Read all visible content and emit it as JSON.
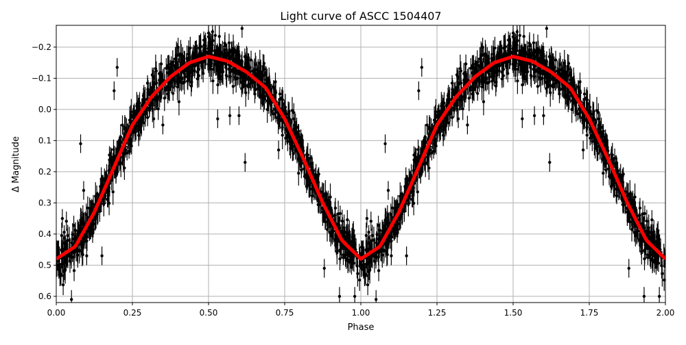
{
  "chart_data": {
    "type": "scatter",
    "title": "Light curve of ASCC 1504407",
    "xlabel": "Phase",
    "ylabel": "Δ Magnitude",
    "xlim": [
      0,
      2
    ],
    "ylim": [
      0.62,
      -0.27
    ],
    "y_inverted": true,
    "grid": true,
    "xticks": [
      "0.00",
      "0.25",
      "0.50",
      "0.75",
      "1.00",
      "1.25",
      "1.50",
      "1.75",
      "2.00"
    ],
    "xtick_values": [
      0,
      0.25,
      0.5,
      0.75,
      1,
      1.25,
      1.5,
      1.75,
      2
    ],
    "yticks": [
      "−0.2",
      "−0.1",
      "0.0",
      "0.1",
      "0.2",
      "0.3",
      "0.4",
      "0.5",
      "0.6"
    ],
    "ytick_values": [
      -0.2,
      -0.1,
      0,
      0.1,
      0.2,
      0.3,
      0.4,
      0.5,
      0.6
    ],
    "colors": {
      "points": "#000000",
      "model": "#ff0000",
      "grid": "#b0b0b0"
    },
    "model": {
      "phase": [
        0,
        0.0625,
        0.125,
        0.1875,
        0.25,
        0.3125,
        0.375,
        0.4375,
        0.5,
        0.5625,
        0.625,
        0.6875,
        0.75,
        0.8125,
        0.875,
        0.9375,
        1.0
      ],
      "magnitude": [
        0.48,
        0.44,
        0.33,
        0.19,
        0.05,
        -0.04,
        -0.105,
        -0.15,
        -0.17,
        -0.155,
        -0.12,
        -0.07,
        0.03,
        0.16,
        0.3,
        0.42,
        0.48
      ]
    },
    "scatter_rms": 0.03,
    "typical_error": 0.03,
    "outliers": [
      [
        0.08,
        0.11
      ],
      [
        0.19,
        -0.06
      ],
      [
        0.2,
        -0.135
      ],
      [
        0.61,
        -0.26
      ],
      [
        0.62,
        0.17
      ],
      [
        0.6,
        0.02
      ],
      [
        0.5,
        -0.245
      ],
      [
        0.53,
        0.03
      ],
      [
        0.09,
        0.26
      ],
      [
        0.02,
        0.35
      ],
      [
        0.05,
        0.61
      ],
      [
        0.93,
        0.6
      ],
      [
        0.98,
        0.6
      ],
      [
        0.73,
        0.13
      ],
      [
        0.78,
        0.01
      ],
      [
        0.15,
        0.47
      ],
      [
        0.35,
        0.05
      ],
      [
        0.4,
        -0.2
      ],
      [
        0.32,
        0.03
      ],
      [
        0.57,
        0.02
      ],
      [
        0.88,
        0.51
      ],
      [
        0.1,
        0.47
      ]
    ]
  }
}
